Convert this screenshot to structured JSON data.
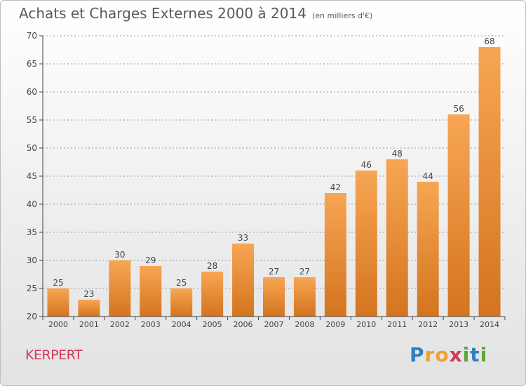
{
  "header": {
    "title": "Achats et Charges Externes 2000 à 2014",
    "subtitle": "(en milliers d'€)"
  },
  "footer": {
    "commune": "KERPERT",
    "logo_text": "Proxiti",
    "logo_letters": [
      {
        "char": "P",
        "color": "#2f7fc1"
      },
      {
        "char": "r",
        "color": "#f0a030"
      },
      {
        "char": "o",
        "color": "#f0a030"
      },
      {
        "char": "x",
        "color": "#d2385a"
      },
      {
        "char": "i",
        "color": "#58a83a"
      },
      {
        "char": "t",
        "color": "#2f7fc1"
      },
      {
        "char": "i",
        "color": "#58a83a"
      }
    ]
  },
  "colors": {
    "bar_light": "#f7a654",
    "bar_dark": "#d4741e",
    "axis": "#444444",
    "grid": "#9a9a9a"
  },
  "chart_data": {
    "type": "bar",
    "title": "Achats et Charges Externes 2000 à 2014",
    "subtitle": "(en milliers d'€)",
    "categories": [
      "2000",
      "2001",
      "2002",
      "2003",
      "2004",
      "2005",
      "2006",
      "2007",
      "2008",
      "2009",
      "2010",
      "2011",
      "2012",
      "2013",
      "2014"
    ],
    "values": [
      25,
      23,
      30,
      29,
      25,
      28,
      33,
      27,
      27,
      42,
      46,
      48,
      44,
      56,
      68
    ],
    "ylim": [
      20,
      70
    ],
    "yticks": [
      20,
      25,
      30,
      35,
      40,
      45,
      50,
      55,
      60,
      65,
      70
    ],
    "grid": true,
    "data_labels": true
  }
}
